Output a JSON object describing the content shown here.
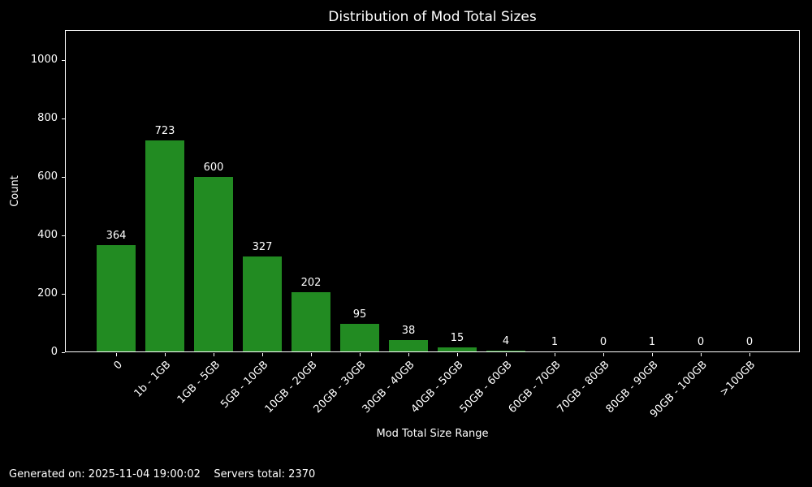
{
  "chart_data": {
    "type": "bar",
    "title": "Distribution of Mod Total Sizes",
    "xlabel": "Mod Total Size Range",
    "ylabel": "Count",
    "categories": [
      "0",
      "1b - 1GB",
      "1GB - 5GB",
      "5GB - 10GB",
      "10GB - 20GB",
      "20GB - 30GB",
      "30GB - 40GB",
      "40GB - 50GB",
      "50GB - 60GB",
      "60GB - 70GB",
      "70GB - 80GB",
      "80GB - 90GB",
      "90GB - 100GB",
      ">100GB"
    ],
    "values": [
      364,
      723,
      600,
      327,
      202,
      95,
      38,
      15,
      4,
      1,
      0,
      1,
      0,
      0
    ],
    "yticks": [
      0,
      200,
      400,
      600,
      800,
      1000
    ],
    "ylim": [
      0,
      1100
    ],
    "grid": false,
    "legend_position": "none",
    "value_labels_above_bars": true,
    "bar_color": "#228b22",
    "background_color": "#000000",
    "text_color": "#ffffff"
  },
  "footer": {
    "text": "Generated on: 2025-11-04 19:00:02    Servers total: 2370"
  }
}
